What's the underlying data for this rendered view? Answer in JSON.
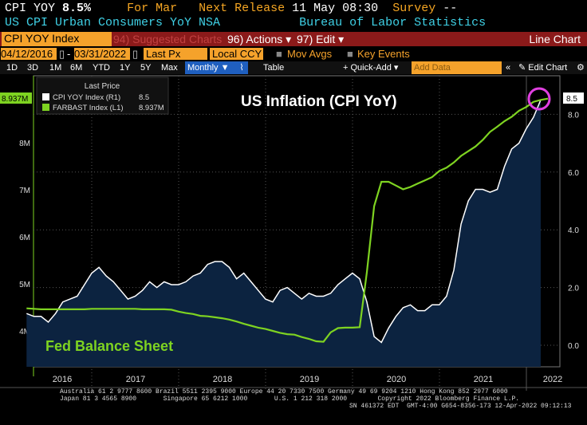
{
  "header": {
    "ticker": "CPI YOY",
    "value": "8.5%",
    "for_label": "For Mar",
    "next_release_label": "Next Release",
    "next_release": "11 May 08:30",
    "survey_label": "Survey",
    "survey": "--",
    "description": "US CPI Urban Consumers YoY NSA",
    "source": "Bureau of Labor Statistics"
  },
  "toolbar": {
    "security": "CPI YOY Index",
    "suggested": "94) Suggested Charts",
    "actions": "96) Actions ▾",
    "edit": "97) Edit ▾",
    "chart_type": "Line Chart"
  },
  "range": {
    "start": "04/12/2016",
    "end": "03/31/2022",
    "price": "Last Px",
    "currency": "Local CCY",
    "mov_avgs": "Mov Avgs",
    "key_events": "Key Events"
  },
  "periods": [
    "1D",
    "3D",
    "1M",
    "6M",
    "YTD",
    "1Y",
    "5Y",
    "Max"
  ],
  "controls": {
    "frequency": "Monthly ▼",
    "table": "Table",
    "quick_add": "+ Quick-Add ▾",
    "add_data_placeholder": "Add Data",
    "collapse": "«",
    "edit_chart": "✎ Edit Chart",
    "settings": "⚙"
  },
  "footer": {
    "line1": "Australia 61 2 9777 8600 Brazil 5511 2395 9000 Europe 44 20 7330 7500 Germany 49 69 9204 1210 Hong Kong 852 2977 6000",
    "line2": "Japan 81 3 4565 8900       Singapore 65 6212 1000       U.S. 1 212 318 2000        Copyright 2022 Bloomberg Finance L.P.",
    "line3": "SN 461372 EDT  GMT-4:00 G654-8356-173 12-Apr-2022 09:12:13"
  },
  "colors": {
    "cpi": "#ffffff",
    "fed": "#7ed321",
    "fill": "#0c2340",
    "accent": "#f5a22b",
    "circle": "#e040e0"
  },
  "chart_data": {
    "type": "line",
    "annotations": {
      "title": "US Inflation (CPI YoY)",
      "fed_label": "Fed Balance Sheet"
    },
    "legend": {
      "title": "Last Price",
      "entries": [
        {
          "name": "CPI YOY Index  (R1)",
          "last": "8.5"
        },
        {
          "name": "FARBAST Index  (L1)",
          "last": "8.937M"
        }
      ]
    },
    "x_start": "2016-04",
    "x_ticks": [
      "2016",
      "2017",
      "2018",
      "2019",
      "2020",
      "2021",
      "2022"
    ],
    "left_axis": {
      "ticks": [
        "4M",
        "5M",
        "6M",
        "7M",
        "8M"
      ],
      "values": [
        4,
        5,
        6,
        7,
        8
      ],
      "last_label": "8.937M"
    },
    "right_axis": {
      "ticks": [
        "0.0",
        "2.0",
        "4.0",
        "6.0",
        "8.0"
      ],
      "values": [
        0,
        2,
        4,
        6,
        8
      ],
      "last_label": "8.5"
    },
    "series": [
      {
        "name": "CPI YOY Index",
        "axis": "right",
        "values": [
          1.1,
          1.0,
          1.0,
          0.8,
          1.1,
          1.5,
          1.6,
          1.7,
          2.1,
          2.5,
          2.7,
          2.4,
          2.2,
          1.9,
          1.6,
          1.7,
          1.9,
          2.2,
          2.0,
          2.2,
          2.1,
          2.1,
          2.2,
          2.4,
          2.5,
          2.8,
          2.9,
          2.9,
          2.7,
          2.3,
          2.5,
          2.2,
          1.9,
          1.6,
          1.5,
          1.9,
          2.0,
          1.8,
          1.6,
          1.8,
          1.7,
          1.7,
          1.8,
          2.1,
          2.3,
          2.5,
          2.3,
          1.5,
          0.3,
          0.1,
          0.6,
          1.0,
          1.3,
          1.4,
          1.2,
          1.2,
          1.4,
          1.4,
          1.7,
          2.6,
          4.2,
          5.0,
          5.4,
          5.4,
          5.3,
          5.4,
          6.2,
          6.8,
          7.0,
          7.5,
          7.9,
          8.5
        ]
      },
      {
        "name": "FARBAST Index",
        "axis": "left",
        "values": [
          4.48,
          4.47,
          4.46,
          4.46,
          4.46,
          4.46,
          4.46,
          4.46,
          4.46,
          4.47,
          4.47,
          4.47,
          4.47,
          4.47,
          4.47,
          4.47,
          4.46,
          4.46,
          4.46,
          4.46,
          4.45,
          4.41,
          4.38,
          4.36,
          4.32,
          4.31,
          4.29,
          4.27,
          4.24,
          4.2,
          4.15,
          4.11,
          4.07,
          4.04,
          4.0,
          3.96,
          3.93,
          3.92,
          3.87,
          3.83,
          3.78,
          3.77,
          3.97,
          4.06,
          4.07,
          4.07,
          4.08,
          5.25,
          6.65,
          7.17,
          7.17,
          7.09,
          7.01,
          7.06,
          7.13,
          7.2,
          7.27,
          7.4,
          7.47,
          7.58,
          7.72,
          7.82,
          7.92,
          8.06,
          8.23,
          8.34,
          8.46,
          8.55,
          8.68,
          8.76,
          8.87,
          8.91,
          8.937
        ]
      }
    ]
  }
}
